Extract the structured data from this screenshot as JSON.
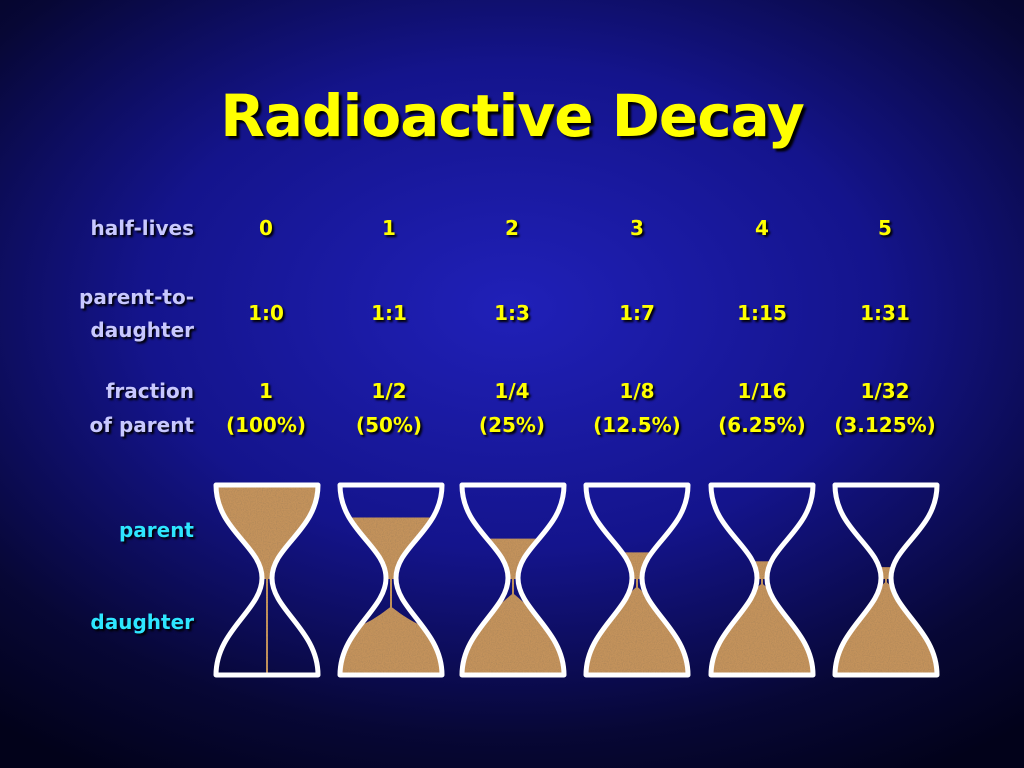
{
  "title": "Radioactive Decay",
  "labels": {
    "half_lives": "half-lives",
    "ratio_line1": "parent-to-",
    "ratio_line2": "daughter",
    "fraction_line1": "fraction",
    "fraction_line2": "of parent",
    "parent": "parent",
    "daughter": "daughter"
  },
  "columns": [
    {
      "half_life": "0",
      "ratio": "1:0",
      "fraction": "1",
      "percent": "(100%)",
      "parent_fraction": 1
    },
    {
      "half_life": "1",
      "ratio": "1:1",
      "fraction": "1/2",
      "percent": "(50%)",
      "parent_fraction": 0.5
    },
    {
      "half_life": "2",
      "ratio": "1:3",
      "fraction": "1/4",
      "percent": "(25%)",
      "parent_fraction": 0.25
    },
    {
      "half_life": "3",
      "ratio": "1:7",
      "fraction": "1/8",
      "percent": "(12.5%)",
      "parent_fraction": 0.125
    },
    {
      "half_life": "4",
      "ratio": "1:15",
      "fraction": "1/16",
      "percent": "(6.25%)",
      "parent_fraction": 0.0625
    },
    {
      "half_life": "5",
      "ratio": "1:31",
      "fraction": "1/32",
      "percent": "(3.125%)",
      "parent_fraction": 0.03125
    }
  ],
  "colors": {
    "title": "#ffff00",
    "values": "#ffff00",
    "row_labels": "#c8c8ff",
    "parent_daughter_labels": "#2ee6ff",
    "glass_outline": "#ffffff",
    "sand": "#c4935c"
  }
}
